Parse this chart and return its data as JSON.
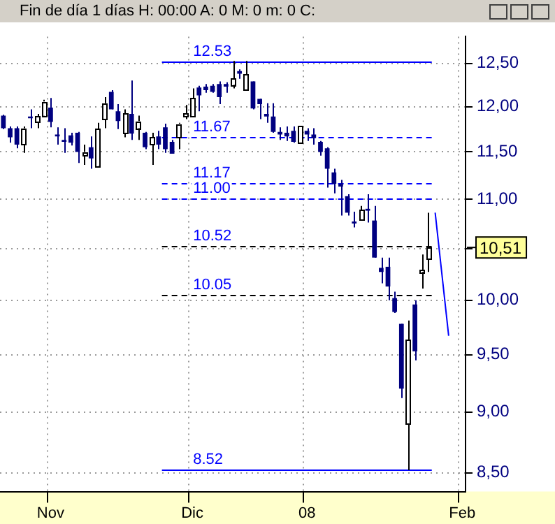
{
  "chart_data": {
    "type": "candlestick",
    "title": "Fin de día 1 días H: 00:00 A: 0 M: 0 m: 0 C:",
    "categories": [
      null,
      null,
      null,
      null,
      null,
      null,
      null,
      "Nov",
      null,
      null,
      null,
      null,
      null,
      null,
      null,
      null,
      null,
      null,
      null,
      null,
      null,
      null,
      null,
      null,
      null,
      null,
      null,
      null,
      "Dic",
      null,
      null,
      null,
      null,
      null,
      null,
      null,
      null,
      null,
      null,
      null,
      null,
      null,
      null,
      null,
      null,
      "08",
      null,
      null,
      null,
      null,
      null,
      null,
      null,
      null,
      null,
      null,
      null,
      null,
      null,
      null,
      null,
      null,
      null,
      null,
      null,
      null,
      null,
      null,
      "Feb"
    ],
    "ohlc": [
      [
        11.9,
        11.91,
        11.75,
        11.76
      ],
      [
        11.76,
        11.78,
        11.6,
        11.66
      ],
      [
        11.76,
        11.78,
        11.54,
        11.58
      ],
      [
        11.58,
        11.78,
        11.49,
        11.76
      ],
      [
        11.89,
        11.97,
        11.76,
        11.87
      ],
      [
        11.83,
        11.92,
        11.76,
        11.89
      ],
      [
        11.9,
        12.08,
        11.9,
        12.06
      ],
      [
        11.99,
        12.1,
        11.77,
        11.83
      ],
      [
        11.69,
        11.77,
        11.58,
        11.67
      ],
      [
        11.63,
        11.76,
        11.49,
        11.61
      ],
      [
        11.68,
        11.71,
        11.57,
        11.6
      ],
      [
        11.71,
        11.72,
        11.38,
        11.5
      ],
      [
        11.46,
        11.58,
        11.36,
        11.5
      ],
      [
        11.55,
        11.67,
        11.32,
        11.43
      ],
      [
        11.35,
        11.82,
        11.35,
        11.75
      ],
      [
        11.86,
        12.11,
        11.76,
        12.04
      ],
      [
        12.17,
        12.19,
        11.97,
        11.97
      ],
      [
        11.95,
        12.03,
        11.75,
        11.84
      ],
      [
        11.71,
        11.97,
        11.66,
        11.92
      ],
      [
        11.92,
        12.3,
        11.63,
        11.7
      ],
      [
        11.76,
        11.9,
        11.63,
        11.84
      ],
      [
        11.71,
        11.72,
        11.53,
        11.55
      ],
      [
        11.58,
        11.71,
        11.36,
        11.66
      ],
      [
        11.67,
        11.73,
        11.53,
        11.58
      ],
      [
        11.77,
        11.81,
        11.49,
        11.53
      ],
      [
        11.61,
        11.63,
        11.48,
        11.48
      ],
      [
        11.66,
        11.82,
        11.53,
        11.81
      ],
      [
        11.89,
        12.02,
        11.86,
        11.92
      ],
      [
        11.89,
        12.21,
        11.89,
        12.1
      ],
      [
        12.22,
        12.24,
        11.95,
        12.13
      ],
      [
        12.23,
        12.26,
        12.16,
        12.19
      ],
      [
        12.24,
        12.26,
        12.16,
        12.17
      ],
      [
        12.26,
        12.29,
        12.03,
        12.11
      ],
      [
        12.26,
        12.28,
        12.16,
        12.23
      ],
      [
        12.25,
        12.53,
        12.21,
        12.32
      ],
      [
        12.41,
        12.43,
        12.32,
        12.38
      ],
      [
        12.19,
        12.53,
        12.19,
        12.37
      ],
      [
        12.29,
        12.29,
        11.97,
        11.98
      ],
      [
        12.09,
        12.09,
        11.86,
        12.03
      ],
      [
        11.92,
        12.04,
        11.82,
        11.89
      ],
      [
        11.89,
        12.04,
        11.71,
        11.72
      ],
      [
        11.72,
        11.77,
        11.63,
        11.69
      ],
      [
        11.71,
        11.78,
        11.62,
        11.67
      ],
      [
        11.73,
        11.78,
        11.6,
        11.61
      ],
      [
        11.6,
        11.78,
        11.6,
        11.78
      ],
      [
        11.73,
        11.76,
        11.62,
        11.69
      ],
      [
        11.69,
        11.76,
        11.58,
        11.65
      ],
      [
        11.61,
        11.62,
        11.46,
        11.5
      ],
      [
        11.54,
        11.55,
        11.12,
        11.32
      ],
      [
        11.28,
        11.32,
        11.06,
        11.16
      ],
      [
        11.16,
        11.2,
        10.83,
        11.13
      ],
      [
        11.03,
        11.05,
        10.83,
        10.86
      ],
      [
        10.77,
        10.87,
        10.71,
        10.75
      ],
      [
        10.79,
        10.93,
        10.78,
        10.89
      ],
      [
        10.9,
        11.05,
        10.76,
        10.88
      ],
      [
        10.78,
        10.93,
        10.41,
        10.41
      ],
      [
        10.31,
        10.41,
        10.16,
        10.27
      ],
      [
        10.32,
        10.41,
        10.0,
        10.13
      ],
      [
        10.02,
        10.08,
        9.88,
        9.89
      ],
      [
        9.78,
        9.78,
        9.12,
        9.2
      ],
      [
        8.9,
        9.81,
        8.52,
        9.63
      ],
      [
        9.96,
        10.0,
        9.45,
        9.53
      ],
      [
        10.27,
        10.44,
        10.11,
        10.29
      ],
      [
        10.4,
        10.86,
        10.27,
        10.51
      ],
      null,
      null,
      null,
      null,
      null
    ],
    "colors": [
      "#000080",
      "#000080",
      "#000080",
      "#ffffff",
      "#000080",
      "#ffffff",
      "#ffffff",
      "#000080",
      "#000080",
      "#000080",
      "#000080",
      "#000080",
      "#ffffff",
      "#000080",
      "#ffffff",
      "#ffffff",
      "#000080",
      "#000080",
      "#ffffff",
      "#000080",
      "#ffffff",
      "#000080",
      "#ffffff",
      "#000080",
      "#000080",
      "#000080",
      "#ffffff",
      "#ffffff",
      "#ffffff",
      "#000080",
      "#000080",
      "#000080",
      "#000080",
      "#000080",
      "#ffffff",
      "#000080",
      "#ffffff",
      "#000080",
      "#000080",
      "#000080",
      "#000080",
      "#000080",
      "#000080",
      "#000080",
      "#ffffff",
      "#000080",
      "#000080",
      "#000080",
      "#000080",
      "#000080",
      "#000080",
      "#000080",
      "#000080",
      "#ffffff",
      "#000080",
      "#000080",
      "#000080",
      "#000080",
      "#000080",
      "#000080",
      "#ffffff",
      "#000080",
      "#ffffff",
      "#ffffff",
      null,
      null,
      null,
      null,
      null
    ],
    "series": [
      {
        "type": "line",
        "color": "#0000ff",
        "values": [
          null,
          null,
          null,
          null,
          null,
          null,
          null,
          null,
          null,
          null,
          null,
          null,
          null,
          null,
          null,
          null,
          null,
          null,
          null,
          null,
          null,
          null,
          null,
          null,
          null,
          null,
          null,
          null,
          null,
          null,
          null,
          null,
          null,
          null,
          null,
          null,
          null,
          null,
          null,
          null,
          null,
          null,
          null,
          null,
          null,
          null,
          null,
          null,
          null,
          null,
          null,
          null,
          null,
          null,
          null,
          null,
          null,
          null,
          null,
          null,
          null,
          null,
          null,
          null,
          10.86,
          null,
          9.67,
          null,
          null
        ]
      }
    ],
    "ylim": [
      8.35,
      12.82
    ],
    "yticks": [
      {
        "value": 8.5,
        "label": "8,50"
      },
      {
        "value": 9,
        "label": "9,00"
      },
      {
        "value": 9.5,
        "label": "9,50"
      },
      {
        "value": 10,
        "label": "10,00"
      },
      {
        "value": 10.5,
        "label": null
      },
      {
        "value": 11,
        "label": "11,00"
      },
      {
        "value": 11.5,
        "label": "11,50"
      },
      {
        "value": 12,
        "label": "12,00"
      },
      {
        "value": 12.5,
        "label": "12,50"
      }
    ],
    "log": "y",
    "grid": true,
    "legend": false,
    "ref_lines": [
      {
        "axis": "y",
        "value": 12.53,
        "label": "12.53",
        "color": "#0000ff",
        "line_style": "solid"
      },
      {
        "axis": "y",
        "value": 11.67,
        "label": "11.67",
        "color": "#0000ff",
        "line_style": "dashed"
      },
      {
        "axis": "y",
        "value": 11.17,
        "label": "11.17",
        "color": "#0000ff",
        "line_style": "dashed"
      },
      {
        "axis": "y",
        "value": 11.0,
        "label": "11.00",
        "color": "#0000ff",
        "line_style": "dashed"
      },
      {
        "axis": "y",
        "value": 10.52,
        "label": "10.52",
        "color": "#000000",
        "line_style": "dashed"
      },
      {
        "axis": "y",
        "value": 10.05,
        "label": "10.05",
        "color": "#000000",
        "line_style": "dashed"
      },
      {
        "axis": "y",
        "value": 8.52,
        "label": "8.52",
        "color": "#0000ff",
        "line_style": "solid"
      }
    ],
    "annotations": [
      "10,51"
    ]
  }
}
